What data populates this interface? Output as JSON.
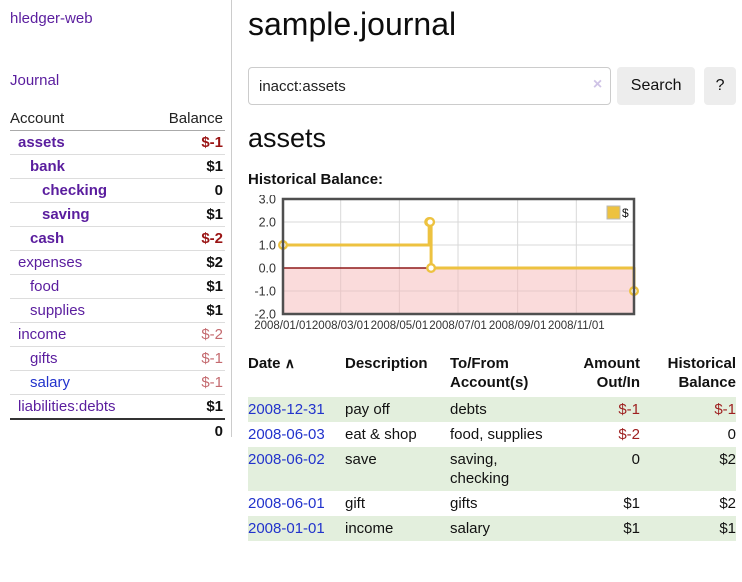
{
  "sidebar": {
    "app_title": "hledger-web",
    "journal_label": "Journal",
    "accounts": {
      "col_account": "Account",
      "col_balance": "Balance",
      "rows": [
        {
          "name": "assets",
          "balance": "$-1"
        },
        {
          "name": "bank",
          "balance": "$1"
        },
        {
          "name": "checking",
          "balance": "0"
        },
        {
          "name": "saving",
          "balance": "$1"
        },
        {
          "name": "cash",
          "balance": "$-2"
        },
        {
          "name": "expenses",
          "balance": "$2"
        },
        {
          "name": "food",
          "balance": "$1"
        },
        {
          "name": "supplies",
          "balance": "$1"
        },
        {
          "name": "income",
          "balance": "$-2"
        },
        {
          "name": "gifts",
          "balance": "$-1"
        },
        {
          "name": "salary",
          "balance": "$-1"
        },
        {
          "name": "liabilities:debts",
          "balance": "$1"
        }
      ],
      "total": "0"
    }
  },
  "header": {
    "title": "sample.journal"
  },
  "search": {
    "query": "inacct:assets",
    "clear_icon": "×",
    "button_label": "Search",
    "help_label": "?"
  },
  "account_page": {
    "heading": "assets",
    "chart_label": "Historical Balance:"
  },
  "chart_data": {
    "type": "line",
    "title": "Historical Balance",
    "series": [
      {
        "name": "$",
        "color": "#EDC240",
        "step": true,
        "points": [
          {
            "x": "2008-01-01",
            "y": 1
          },
          {
            "x": "2008-06-01",
            "y": 2
          },
          {
            "x": "2008-06-02",
            "y": 2
          },
          {
            "x": "2008-06-03",
            "y": 0
          },
          {
            "x": "2008-12-31",
            "y": -1
          }
        ]
      }
    ],
    "xlim": [
      "2008-01-01",
      "2008-12-31"
    ],
    "ylim": [
      -2,
      3
    ],
    "xticks": [
      "2008/01/01",
      "2008/03/01",
      "2008/05/01",
      "2008/07/01",
      "2008/09/01",
      "2008/11/01"
    ],
    "yticks": [
      "3.0",
      "2.0",
      "1.0",
      "0.0",
      "-1.0",
      "-2.0"
    ],
    "grid": true,
    "legend_position": "top-right",
    "zero_line_color": "#8f1a1a",
    "negative_region_fill": "#f5b8b8"
  },
  "register": {
    "headers": {
      "date": "Date",
      "sort_icon": "∧",
      "description": "Description",
      "accounts": "To/From Account(s)",
      "amount": "Amount Out/In",
      "balance": "Historical Balance"
    },
    "rows": [
      {
        "date": "2008-12-31",
        "description": "pay off",
        "accounts": "debts",
        "amount": "$-1",
        "balance": "$-1"
      },
      {
        "date": "2008-06-03",
        "description": "eat & shop",
        "accounts": "food, supplies",
        "amount": "$-2",
        "balance": "0"
      },
      {
        "date": "2008-06-02",
        "description": "save",
        "accounts": "saving,\nchecking",
        "amount": "0",
        "balance": "$2"
      },
      {
        "date": "2008-06-01",
        "description": "gift",
        "accounts": "gifts",
        "amount": "$1",
        "balance": "$2"
      },
      {
        "date": "2008-01-01",
        "description": "income",
        "accounts": "salary",
        "amount": "$1",
        "balance": "$1"
      }
    ]
  }
}
